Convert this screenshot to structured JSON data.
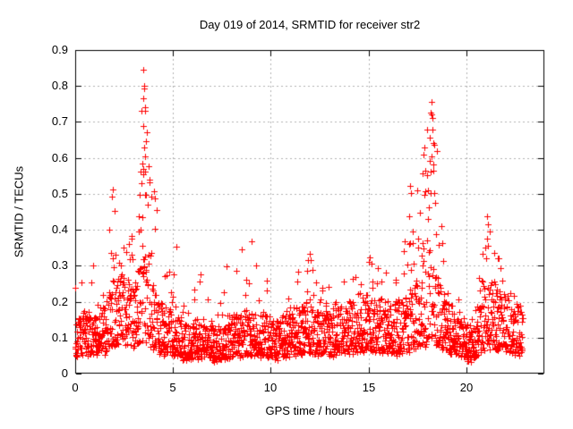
{
  "chart_data": {
    "type": "scatter",
    "title": "Day 019 of 2014, SRMTID for receiver str2",
    "xlabel": "GPS time / hours",
    "ylabel": "SRMTID / TECUs",
    "xlim": [
      0,
      24
    ],
    "ylim": [
      0,
      0.9
    ],
    "xticks": [
      0,
      5,
      10,
      15,
      20
    ],
    "xtick_labels": [
      "0",
      "5",
      "10",
      "15",
      "20"
    ],
    "yticks": [
      0,
      0.1,
      0.2,
      0.3,
      0.4,
      0.5,
      0.6,
      0.7,
      0.8,
      0.9
    ],
    "ytick_labels": [
      "0",
      "0.1",
      "0.2",
      "0.3",
      "0.4",
      "0.5",
      "0.6",
      "0.7",
      "0.8",
      "0.9"
    ],
    "grid": true,
    "legend": "none",
    "marker": "plus",
    "marker_color": "#ff0000",
    "grid_color": "#b0b0b0",
    "border_color": "#000000",
    "data_time_range_hours": [
      0,
      22.9
    ],
    "sample_interval_hours": 0.01,
    "random_seed": 33751049,
    "profile_format": [
      "hour",
      "median_TECU",
      "max_TECU",
      "spike_probability"
    ],
    "scatter_profile": [
      [
        0.0,
        0.11,
        0.24,
        0.05
      ],
      [
        0.9,
        0.11,
        0.3,
        0.07
      ],
      [
        1.5,
        0.12,
        0.28,
        0.07
      ],
      [
        1.9,
        0.16,
        0.51,
        0.22
      ],
      [
        2.2,
        0.17,
        0.44,
        0.18
      ],
      [
        2.6,
        0.17,
        0.36,
        0.15
      ],
      [
        3.1,
        0.16,
        0.42,
        0.18
      ],
      [
        3.5,
        0.22,
        0.85,
        0.5
      ],
      [
        3.8,
        0.17,
        0.56,
        0.28
      ],
      [
        4.05,
        0.15,
        0.51,
        0.22
      ],
      [
        4.5,
        0.12,
        0.31,
        0.1
      ],
      [
        5.15,
        0.1,
        0.35,
        0.1
      ],
      [
        5.7,
        0.09,
        0.22,
        0.05
      ],
      [
        6.5,
        0.1,
        0.3,
        0.08
      ],
      [
        7.2,
        0.08,
        0.17,
        0.04
      ],
      [
        7.9,
        0.1,
        0.34,
        0.09
      ],
      [
        8.5,
        0.11,
        0.34,
        0.1
      ],
      [
        9.0,
        0.12,
        0.37,
        0.12
      ],
      [
        9.5,
        0.11,
        0.33,
        0.09
      ],
      [
        10.2,
        0.09,
        0.2,
        0.05
      ],
      [
        10.9,
        0.11,
        0.28,
        0.08
      ],
      [
        11.5,
        0.12,
        0.3,
        0.09
      ],
      [
        12.0,
        0.13,
        0.33,
        0.1
      ],
      [
        12.6,
        0.11,
        0.26,
        0.07
      ],
      [
        13.2,
        0.12,
        0.29,
        0.08
      ],
      [
        13.9,
        0.13,
        0.31,
        0.1
      ],
      [
        14.5,
        0.12,
        0.28,
        0.08
      ],
      [
        15.05,
        0.14,
        0.32,
        0.12
      ],
      [
        15.6,
        0.13,
        0.3,
        0.1
      ],
      [
        16.2,
        0.12,
        0.27,
        0.08
      ],
      [
        16.8,
        0.13,
        0.35,
        0.12
      ],
      [
        17.15,
        0.15,
        0.52,
        0.22
      ],
      [
        17.8,
        0.17,
        0.6,
        0.28
      ],
      [
        18.2,
        0.2,
        0.755,
        0.48
      ],
      [
        18.5,
        0.17,
        0.64,
        0.25
      ],
      [
        19.0,
        0.13,
        0.3,
        0.1
      ],
      [
        19.6,
        0.11,
        0.22,
        0.06
      ],
      [
        20.25,
        0.08,
        0.15,
        0.04
      ],
      [
        20.7,
        0.12,
        0.32,
        0.12
      ],
      [
        21.1,
        0.16,
        0.44,
        0.18
      ],
      [
        21.6,
        0.15,
        0.33,
        0.12
      ],
      [
        22.1,
        0.14,
        0.28,
        0.09
      ],
      [
        22.55,
        0.13,
        0.26,
        0.08
      ],
      [
        22.9,
        0.12,
        0.21,
        0.05
      ]
    ],
    "notable_points": [
      [
        3.49,
        0.845
      ],
      [
        3.53,
        0.801
      ],
      [
        3.54,
        0.794
      ],
      [
        3.5,
        0.766
      ],
      [
        3.55,
        0.742
      ],
      [
        3.57,
        0.731
      ],
      [
        3.46,
        0.688
      ],
      [
        3.6,
        0.646
      ],
      [
        3.52,
        0.628
      ],
      [
        3.56,
        0.604
      ],
      [
        3.43,
        0.585
      ],
      [
        3.58,
        0.563
      ],
      [
        18.21,
        0.755
      ],
      [
        18.22,
        0.722
      ],
      [
        18.27,
        0.712
      ],
      [
        18.16,
        0.657
      ],
      [
        18.31,
        0.642
      ],
      [
        18.24,
        0.603
      ],
      [
        17.84,
        0.628
      ],
      [
        17.8,
        0.608
      ],
      [
        17.77,
        0.556
      ],
      [
        1.92,
        0.512
      ],
      [
        1.9,
        0.492
      ],
      [
        2.02,
        0.452
      ],
      [
        4.03,
        0.508
      ],
      [
        4.06,
        0.488
      ],
      [
        17.12,
        0.521
      ],
      [
        17.16,
        0.502
      ],
      [
        21.08,
        0.438
      ],
      [
        21.13,
        0.416
      ],
      [
        9.02,
        0.368
      ],
      [
        5.16,
        0.352
      ],
      [
        12.02,
        0.332
      ],
      [
        15.06,
        0.322
      ],
      [
        8.52,
        0.345
      ],
      [
        0.92,
        0.302
      ]
    ]
  }
}
